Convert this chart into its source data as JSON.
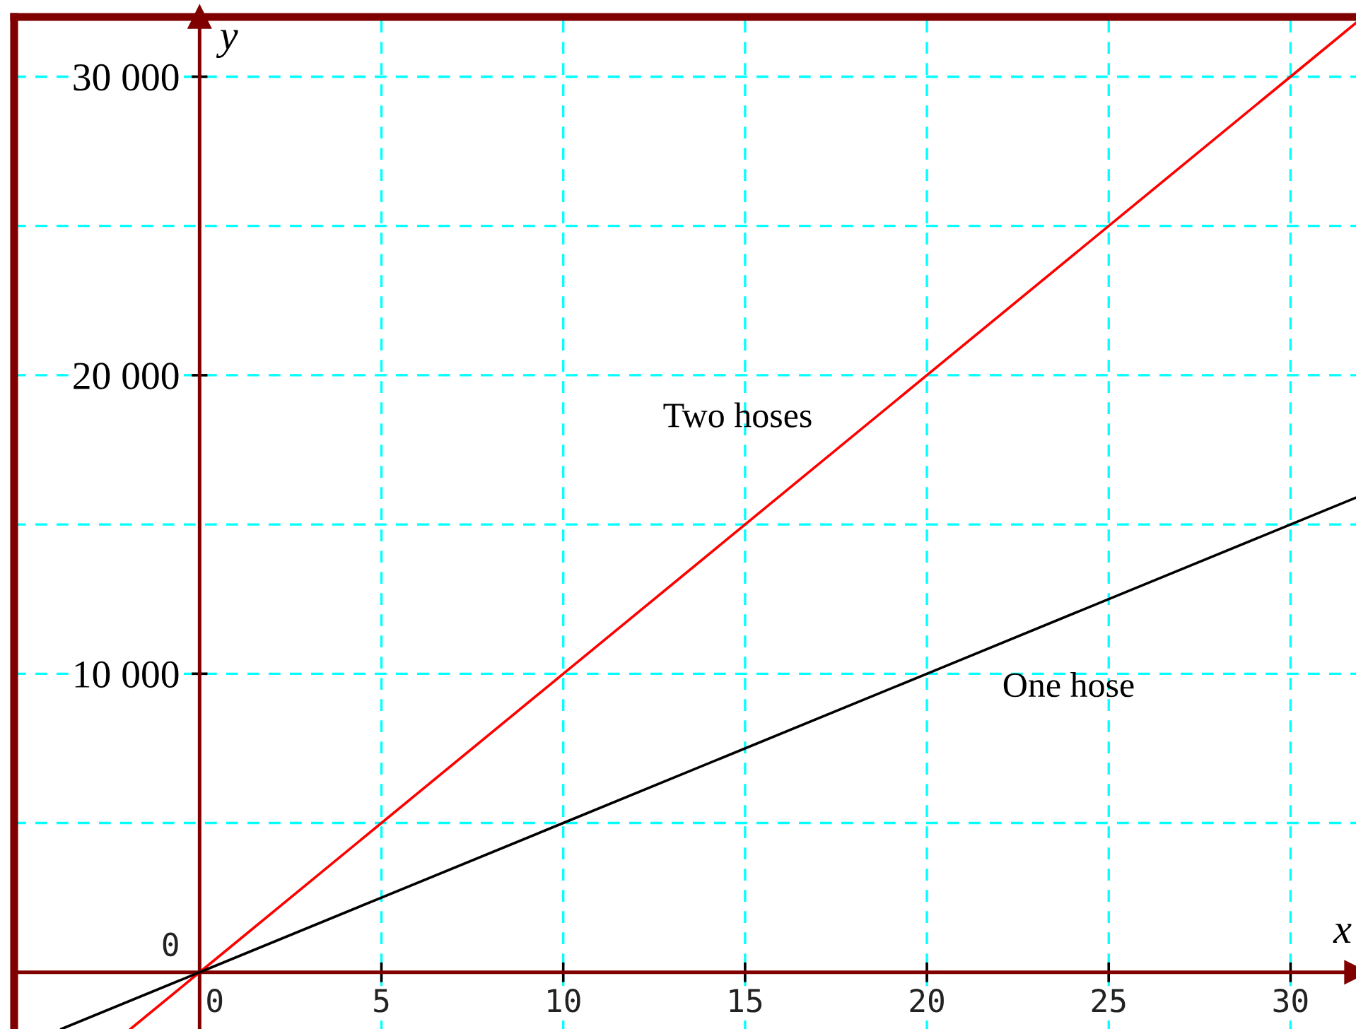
{
  "chart_data": {
    "type": "line",
    "xlabel": "x",
    "ylabel": "y",
    "xlim": [
      -5.1,
      31.8
    ],
    "ylim": [
      -1900,
      32000
    ],
    "xticks": [
      0,
      5,
      10,
      15,
      20,
      25,
      30
    ],
    "yticks": [
      {
        "value": 0,
        "label": "0"
      },
      {
        "value": 5000,
        "label": null
      },
      {
        "value": 10000,
        "label": "10 000"
      },
      {
        "value": 15000,
        "label": null
      },
      {
        "value": 20000,
        "label": "20 000"
      },
      {
        "value": 25000,
        "label": null
      },
      {
        "value": 30000,
        "label": "30 000"
      }
    ],
    "grid": true,
    "line_style": "solid",
    "series": [
      {
        "name": "Two hoses",
        "color": "#ff0000",
        "x": [
          -1.9,
          0,
          10,
          20,
          30,
          31.8
        ],
        "values": [
          -1900,
          0,
          10000,
          20000,
          30000,
          31800
        ]
      },
      {
        "name": "One hose",
        "color": "#000000",
        "x": [
          -3.8,
          0,
          10,
          20,
          30,
          31.8
        ],
        "values": [
          -1900,
          0,
          5000,
          10000,
          15000,
          15900
        ]
      }
    ]
  }
}
